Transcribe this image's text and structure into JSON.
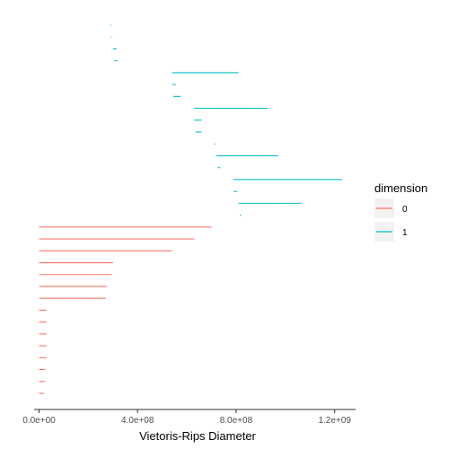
{
  "chart_data": {
    "type": "barcode",
    "xlabel": "Vietoris-Rips Diameter",
    "ylabel": "",
    "xlim": [
      -20000000.0,
      1285000000.0
    ],
    "x_ticks": [
      {
        "value": 0,
        "label": "0.0e+00"
      },
      {
        "value": 400000000,
        "label": "4.0e+08"
      },
      {
        "value": 800000000,
        "label": "8.0e+08"
      },
      {
        "value": 1200000000,
        "label": "1.2e+09"
      }
    ],
    "legend": {
      "title": "dimension",
      "placement": "right",
      "entries": [
        {
          "label": "0",
          "color": "#F8766D"
        },
        {
          "label": "1",
          "color": "#00BFC4"
        }
      ]
    },
    "series": [
      {
        "name": "1",
        "color": "#00BFC4",
        "bars": [
          [
            288000000.0,
            292000000.0
          ],
          [
            292000000.0,
            295000000.0
          ],
          [
            300000000.0,
            315000000.0
          ],
          [
            305000000.0,
            318000000.0
          ],
          [
            540000000.0,
            810000000.0
          ],
          [
            540000000.0,
            555000000.0
          ],
          [
            545000000.0,
            575000000.0
          ],
          [
            630000000.0,
            930000000.0
          ],
          [
            630000000.0,
            660000000.0
          ],
          [
            635000000.0,
            660000000.0
          ],
          [
            710000000.0,
            715000000.0
          ],
          [
            720000000.0,
            970000000.0
          ],
          [
            725000000.0,
            735000000.0
          ],
          [
            790000000.0,
            1230000000.0
          ],
          [
            790000000.0,
            805000000.0
          ],
          [
            810000000.0,
            1065000000.0
          ],
          [
            815000000.0,
            820000000.0
          ]
        ]
      },
      {
        "name": "0",
        "color": "#F8766D",
        "bars": [
          [
            0,
            700000000.0
          ],
          [
            0,
            630000000.0
          ],
          [
            0,
            540000000.0
          ],
          [
            0,
            300000000.0
          ],
          [
            0,
            295000000.0
          ],
          [
            0,
            275000000.0
          ],
          [
            0,
            272000000.0
          ],
          [
            0,
            30000000.0
          ],
          [
            0,
            30000000.0
          ],
          [
            0,
            30000000.0
          ],
          [
            0,
            30000000.0
          ],
          [
            0,
            30000000.0
          ],
          [
            0,
            25000000.0
          ],
          [
            0,
            25000000.0
          ],
          [
            0,
            20000000.0
          ]
        ]
      }
    ]
  }
}
